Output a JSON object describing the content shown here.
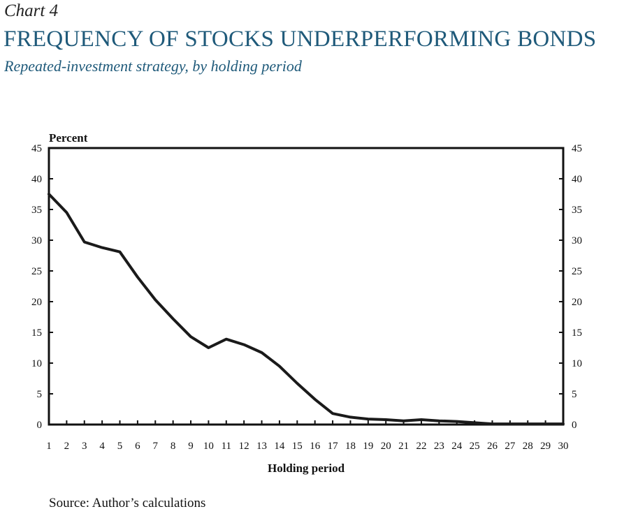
{
  "header": {
    "chart_label": "Chart 4",
    "title": "FREQUENCY OF STOCKS UNDERPERFORMING BONDS",
    "subtitle": "Repeated-investment strategy, by holding period"
  },
  "footer": {
    "source": "Source: Author’s calculations"
  },
  "chart_data": {
    "type": "line",
    "title": "FREQUENCY OF STOCKS UNDERPERFORMING BONDS",
    "subtitle": "Repeated-investment strategy, by holding period",
    "xlabel": "Holding period",
    "ylabel": "Percent",
    "ylim": [
      0,
      45
    ],
    "xlim": [
      1,
      30
    ],
    "yticks": [
      0,
      5,
      10,
      15,
      20,
      25,
      30,
      35,
      40,
      45
    ],
    "xticks": [
      1,
      2,
      3,
      4,
      5,
      6,
      7,
      8,
      9,
      10,
      11,
      12,
      13,
      14,
      15,
      16,
      17,
      18,
      19,
      20,
      21,
      22,
      23,
      24,
      25,
      26,
      27,
      28,
      29,
      30
    ],
    "grid": false,
    "right_axis": true,
    "series": [
      {
        "name": "Frequency of stocks underperforming bonds",
        "color": "#1a1a1a",
        "x": [
          1,
          2,
          3,
          4,
          5,
          6,
          7,
          8,
          9,
          10,
          11,
          12,
          13,
          14,
          15,
          16,
          17,
          18,
          19,
          20,
          21,
          22,
          23,
          24,
          25,
          26,
          27,
          28,
          29,
          30
        ],
        "values": [
          37.5,
          34.5,
          29.7,
          28.8,
          28.1,
          24.0,
          20.3,
          17.2,
          14.3,
          12.5,
          13.9,
          13.0,
          11.7,
          9.5,
          6.7,
          4.1,
          1.8,
          1.2,
          0.9,
          0.8,
          0.6,
          0.8,
          0.6,
          0.5,
          0.3,
          0.1,
          0.1,
          0.1,
          0.1,
          0.1
        ]
      }
    ],
    "source": "Source: Author’s calculations"
  }
}
